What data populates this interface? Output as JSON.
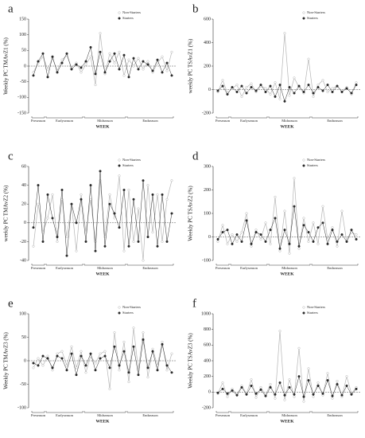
{
  "chart_data": [
    {
      "type": "line",
      "title": "a",
      "y_label": "Weekly PC TMAvZ1 (%)",
      "x_label": "WEEK",
      "x": [
        1,
        2,
        3,
        4,
        5,
        6,
        7,
        8,
        9,
        10,
        11,
        12,
        13,
        14,
        15,
        16,
        17,
        18,
        19,
        20,
        21,
        22,
        23,
        24,
        25,
        26,
        27,
        28,
        29,
        30
      ],
      "xlim": [
        0,
        31
      ],
      "ylim": [
        -150,
        150
      ],
      "yticks": [
        -150,
        -100,
        -50,
        0,
        50,
        100,
        150
      ],
      "seasons": [
        {
          "label": "Preseason",
          "start": 1,
          "end": 3
        },
        {
          "label": "Earlyseason",
          "start": 4,
          "end": 11
        },
        {
          "label": "Midseason",
          "start": 12,
          "end": 20
        },
        {
          "label": "Endseason",
          "start": 21,
          "end": 30
        }
      ],
      "series": [
        {
          "name": "Non-Starters",
          "color": "#b5b5b5",
          "values": [
            -20,
            10,
            30,
            -10,
            25,
            -15,
            20,
            35,
            -5,
            10,
            -20,
            5,
            30,
            -60,
            105,
            -25,
            40,
            10,
            45,
            -30,
            20,
            0,
            25,
            -10,
            15,
            -20,
            10,
            30,
            -15,
            45
          ]
        },
        {
          "name": "Starters",
          "color": "#2a2a2a",
          "values": [
            -30,
            15,
            40,
            -35,
            30,
            -20,
            10,
            40,
            -10,
            5,
            -5,
            15,
            60,
            -25,
            45,
            -20,
            15,
            40,
            -10,
            35,
            -35,
            25,
            -10,
            15,
            5,
            -15,
            20,
            -20,
            10,
            -30
          ]
        }
      ]
    },
    {
      "type": "line",
      "title": "b",
      "y_label": "weekly PC TSAvZ1 (%)",
      "x_label": "WEEK",
      "x": [
        1,
        2,
        3,
        4,
        5,
        6,
        7,
        8,
        9,
        10,
        11,
        12,
        13,
        14,
        15,
        16,
        17,
        18,
        19,
        20,
        21,
        22,
        23,
        24,
        25,
        26,
        27,
        28,
        29,
        30
      ],
      "xlim": [
        0,
        31
      ],
      "ylim": [
        -200,
        600
      ],
      "yticks": [
        -200,
        0,
        200,
        400,
        600
      ],
      "seasons": [
        {
          "label": "Preseason",
          "start": 1,
          "end": 3
        },
        {
          "label": "Earlyseason",
          "start": 4,
          "end": 11
        },
        {
          "label": "Midseason",
          "start": 12,
          "end": 20
        },
        {
          "label": "Endseason",
          "start": 21,
          "end": 30
        }
      ],
      "series": [
        {
          "name": "Non-Starters",
          "color": "#b5b5b5",
          "values": [
            -20,
            80,
            -30,
            10,
            40,
            -60,
            20,
            50,
            -20,
            30,
            10,
            -40,
            60,
            -80,
            480,
            -50,
            100,
            20,
            -30,
            260,
            -60,
            40,
            80,
            -20,
            10,
            30,
            -10,
            20,
            -40,
            60
          ]
        },
        {
          "name": "Starters",
          "color": "#2a2a2a",
          "values": [
            -10,
            30,
            -40,
            20,
            -20,
            30,
            -30,
            20,
            -10,
            40,
            -20,
            30,
            -60,
            40,
            -100,
            20,
            -30,
            30,
            -20,
            40,
            -30,
            20,
            -10,
            40,
            -20,
            30,
            -20,
            10,
            -30,
            40
          ]
        }
      ]
    },
    {
      "type": "line",
      "title": "c",
      "y_label": "weekly PC TMAvZ2 (%)",
      "x_label": "WEEK",
      "x": [
        1,
        2,
        3,
        4,
        5,
        6,
        7,
        8,
        9,
        10,
        11,
        12,
        13,
        14,
        15,
        16,
        17,
        18,
        19,
        20,
        21,
        22,
        23,
        24,
        25,
        26,
        27,
        28,
        29,
        30
      ],
      "xlim": [
        0,
        31
      ],
      "ylim": [
        -40,
        60
      ],
      "yticks": [
        -40,
        -20,
        0,
        20,
        40,
        60
      ],
      "seasons": [
        {
          "label": "Preseason",
          "start": 1,
          "end": 3
        },
        {
          "label": "Earlyseason",
          "start": 4,
          "end": 11
        },
        {
          "label": "Midseason",
          "start": 12,
          "end": 20
        },
        {
          "label": "Endseason",
          "start": 21,
          "end": 30
        }
      ],
      "series": [
        {
          "name": "Non-Starters",
          "color": "#b5b5b5",
          "values": [
            -25,
            20,
            -10,
            5,
            30,
            -20,
            25,
            -15,
            20,
            -30,
            30,
            -10,
            25,
            -20,
            45,
            -15,
            30,
            5,
            50,
            -30,
            35,
            -20,
            15,
            -40,
            40,
            -10,
            30,
            -20,
            25,
            45
          ]
        },
        {
          "name": "Starters",
          "color": "#2a2a2a",
          "values": [
            -5,
            40,
            -20,
            30,
            5,
            -15,
            35,
            -35,
            20,
            0,
            25,
            -20,
            40,
            -30,
            55,
            -25,
            20,
            10,
            -5,
            35,
            -25,
            25,
            -20,
            45,
            -15,
            30,
            -25,
            30,
            -20,
            10
          ]
        }
      ]
    },
    {
      "type": "line",
      "title": "d",
      "y_label": "Weekly PC TSAvZ2 (%)",
      "x_label": "WEEK",
      "x": [
        1,
        2,
        3,
        4,
        5,
        6,
        7,
        8,
        9,
        10,
        11,
        12,
        13,
        14,
        15,
        16,
        17,
        18,
        19,
        20,
        21,
        22,
        23,
        24,
        25,
        26,
        27,
        28,
        29,
        30
      ],
      "xlim": [
        0,
        31
      ],
      "ylim": [
        -100,
        300
      ],
      "yticks": [
        -100,
        0,
        100,
        200,
        300
      ],
      "seasons": [
        {
          "label": "Preseason",
          "start": 1,
          "end": 3
        },
        {
          "label": "Earlyseason",
          "start": 4,
          "end": 11
        },
        {
          "label": "Midseason",
          "start": 12,
          "end": 20
        },
        {
          "label": "Endseason",
          "start": 21,
          "end": 30
        }
      ],
      "series": [
        {
          "name": "Non-Starters",
          "color": "#b5b5b5",
          "values": [
            -20,
            50,
            -30,
            10,
            -20,
            20,
            100,
            -40,
            30,
            -10,
            60,
            -30,
            170,
            -60,
            110,
            -70,
            250,
            -50,
            80,
            -20,
            60,
            -30,
            130,
            -10,
            40,
            -40,
            110,
            -20,
            20,
            10
          ]
        },
        {
          "name": "Starters",
          "color": "#2a2a2a",
          "values": [
            -10,
            20,
            30,
            -30,
            10,
            -20,
            70,
            -30,
            20,
            10,
            -20,
            30,
            80,
            -50,
            30,
            -30,
            130,
            -40,
            50,
            20,
            -20,
            40,
            60,
            -30,
            30,
            -20,
            10,
            -20,
            30,
            -10
          ]
        }
      ]
    },
    {
      "type": "line",
      "title": "e",
      "y_label": "Weekly PC TMAvZ3 (%)",
      "x_label": "WEEK",
      "x": [
        1,
        2,
        3,
        4,
        5,
        6,
        7,
        8,
        9,
        10,
        11,
        12,
        13,
        14,
        15,
        16,
        17,
        18,
        19,
        20,
        21,
        22,
        23,
        24,
        25,
        26,
        27,
        28,
        29,
        30
      ],
      "xlim": [
        0,
        31
      ],
      "ylim": [
        -100,
        100
      ],
      "yticks": [
        -100,
        -50,
        0,
        50,
        100
      ],
      "seasons": [
        {
          "label": "Preseason",
          "start": 1,
          "end": 3
        },
        {
          "label": "Earlyseason",
          "start": 4,
          "end": 11
        },
        {
          "label": "Midseason",
          "start": 12,
          "end": 20
        },
        {
          "label": "Endseason",
          "start": 21,
          "end": 30
        }
      ],
      "series": [
        {
          "name": "Non-Starters",
          "color": "#b5b5b5",
          "values": [
            -15,
            5,
            -10,
            10,
            -20,
            15,
            20,
            -10,
            30,
            -15,
            20,
            -25,
            10,
            -5,
            15,
            20,
            -60,
            60,
            -20,
            40,
            -45,
            70,
            -20,
            60,
            -35,
            25,
            -10,
            40,
            -20,
            15
          ]
        },
        {
          "name": "Starters",
          "color": "#2a2a2a",
          "values": [
            -5,
            -10,
            10,
            5,
            -15,
            10,
            5,
            -20,
            15,
            -30,
            10,
            -10,
            15,
            -20,
            5,
            10,
            -15,
            30,
            -10,
            20,
            -25,
            30,
            -30,
            45,
            -15,
            20,
            -20,
            35,
            -10,
            -25
          ]
        }
      ]
    },
    {
      "type": "line",
      "title": "f",
      "y_label": "Weekly PC TSAvZ3 (%)",
      "x_label": "WEEK",
      "x": [
        1,
        2,
        3,
        4,
        5,
        6,
        7,
        8,
        9,
        10,
        11,
        12,
        13,
        14,
        15,
        16,
        17,
        18,
        19,
        20,
        21,
        22,
        23,
        24,
        25,
        26,
        27,
        28,
        29,
        30
      ],
      "xlim": [
        0,
        31
      ],
      "ylim": [
        -200,
        1000
      ],
      "yticks": [
        -200,
        0,
        200,
        400,
        600,
        800,
        1000
      ],
      "seasons": [
        {
          "label": "Preseason",
          "start": 1,
          "end": 3
        },
        {
          "label": "Earlyseason",
          "start": 4,
          "end": 11
        },
        {
          "label": "Midseason",
          "start": 12,
          "end": 20
        },
        {
          "label": "Endseason",
          "start": 21,
          "end": 30
        }
      ],
      "series": [
        {
          "name": "Non-Starters",
          "color": "#b5b5b5",
          "values": [
            -20,
            120,
            -60,
            40,
            -30,
            80,
            -20,
            160,
            -70,
            60,
            -40,
            100,
            -80,
            780,
            -100,
            160,
            -60,
            560,
            -120,
            300,
            -60,
            120,
            -40,
            240,
            -80,
            140,
            -60,
            200,
            -20,
            60
          ]
        },
        {
          "name": "Starters",
          "color": "#2a2a2a",
          "values": [
            -10,
            40,
            -20,
            20,
            -40,
            60,
            -30,
            80,
            -20,
            30,
            -50,
            60,
            -30,
            120,
            -40,
            60,
            -30,
            200,
            -60,
            150,
            -30,
            80,
            -20,
            150,
            -50,
            100,
            -40,
            80,
            -30,
            40
          ]
        }
      ]
    }
  ]
}
